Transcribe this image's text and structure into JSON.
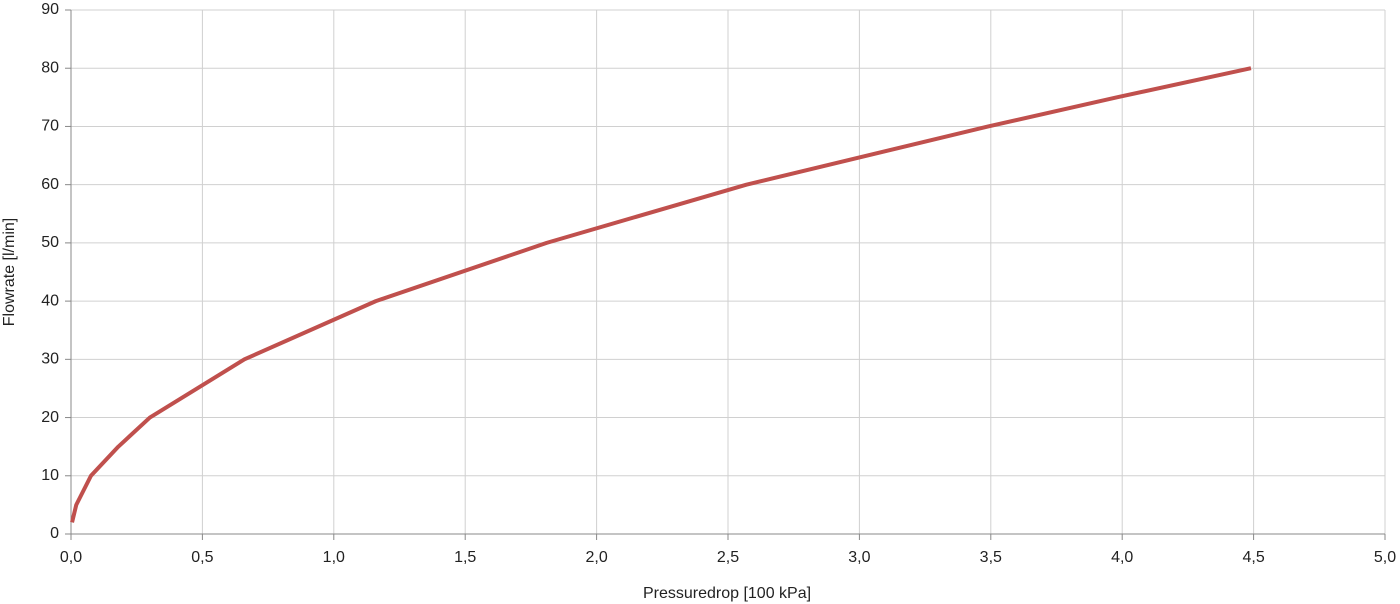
{
  "chart_data": {
    "type": "line",
    "x_label": "Pressuredrop [100 kPa]",
    "y_label": "Flowrate [l/min]",
    "x": [
      0.004,
      0.02,
      0.076,
      0.18,
      0.3,
      0.66,
      1.16,
      1.81,
      2.57,
      3.49,
      3.98,
      4.49
    ],
    "series": [
      {
        "name": "Flowrate",
        "color": "#c0504d",
        "values": [
          2,
          5,
          10,
          15,
          20,
          30,
          40,
          50,
          60,
          70,
          75,
          80
        ]
      }
    ],
    "xlim": [
      0,
      5
    ],
    "xticks": [
      {
        "value": 0,
        "label": "0,0"
      },
      {
        "value": 0.5,
        "label": "0,5"
      },
      {
        "value": 1,
        "label": "1,0"
      },
      {
        "value": 1.5,
        "label": "1,5"
      },
      {
        "value": 2,
        "label": "2,0"
      },
      {
        "value": 2.5,
        "label": "2,5"
      },
      {
        "value": 3,
        "label": "3,0"
      },
      {
        "value": 3.5,
        "label": "3,5"
      },
      {
        "value": 4,
        "label": "4,0"
      },
      {
        "value": 4.5,
        "label": "4,5"
      },
      {
        "value": 5,
        "label": "5,0"
      }
    ],
    "ylim": [
      0,
      90
    ],
    "yticks": [
      0,
      10,
      20,
      30,
      40,
      50,
      60,
      70,
      80,
      90
    ],
    "grid": true
  }
}
